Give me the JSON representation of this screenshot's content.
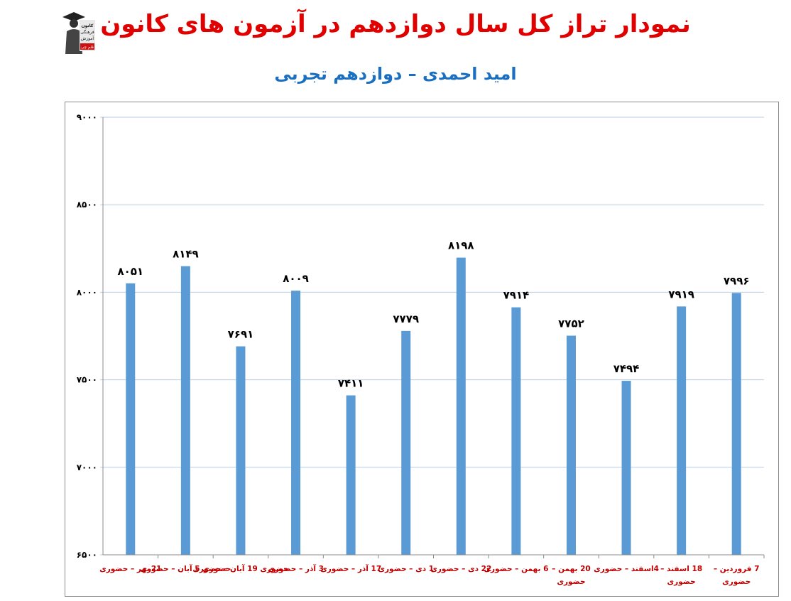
{
  "header": {
    "title": "نمودار تراز کل سال دوازدهم در آزمون های کانون",
    "subtitle": "امید احمدی – دوازدهم تجربی"
  },
  "logo": {
    "icon": "graduate-logo-icon",
    "lines": [
      "کانون",
      "فرهنگی",
      "آموزش",
      "قلم چی"
    ]
  },
  "colors": {
    "title": "#e00000",
    "subtitle": "#1a6fc0",
    "bar": "#5b9bd5",
    "grid": "#b7cde6",
    "xlabel": "#c00000"
  },
  "chart_data": {
    "type": "bar",
    "title": "",
    "xlabel": "",
    "ylabel": "",
    "ylim": [
      6500,
      9000
    ],
    "yticks": [
      {
        "value": 6500,
        "label": "۶۵۰۰"
      },
      {
        "value": 7000,
        "label": "۷۰۰۰"
      },
      {
        "value": 7500,
        "label": "۷۵۰۰"
      },
      {
        "value": 8000,
        "label": "۸۰۰۰"
      },
      {
        "value": 8500,
        "label": "۸۵۰۰"
      },
      {
        "value": 9000,
        "label": "۹۰۰۰"
      }
    ],
    "grid": true,
    "legend": "none",
    "categories": [
      [
        "21مهر – حضوری"
      ],
      [
        "حضوری 5 آبان – حضوری"
      ],
      [
        "حضوری 19 آبان – حضوری"
      ],
      [
        "3 آذر – حضوری"
      ],
      [
        "17 آذر – حضوری"
      ],
      [
        "1 دی – حضوری"
      ],
      [
        "22 دی – حضوری"
      ],
      [
        "6 بهمن – حضوری"
      ],
      [
        "20 بهمن –",
        "حضوری"
      ],
      [
        "4اسفند – حضوری"
      ],
      [
        "18 اسفند –",
        "حضوری"
      ],
      [
        "7 فروردین –",
        "حضوری"
      ]
    ],
    "values": [
      8051,
      8149,
      7691,
      8009,
      7411,
      7779,
      8198,
      7914,
      7752,
      7494,
      7919,
      7996
    ],
    "value_labels": [
      "۸۰۵۱",
      "۸۱۴۹",
      "۷۶۹۱",
      "۸۰۰۹",
      "۷۴۱۱",
      "۷۷۷۹",
      "۸۱۹۸",
      "۷۹۱۴",
      "۷۷۵۲",
      "۷۴۹۴",
      "۷۹۱۹",
      "۷۹۹۶"
    ]
  }
}
